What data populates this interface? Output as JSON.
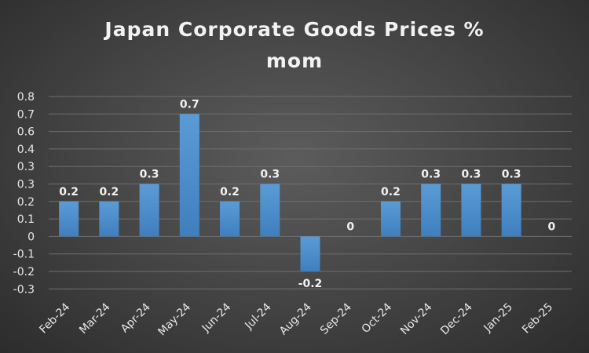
{
  "chart_data": {
    "type": "bar",
    "title_lines": [
      "Japan Corporate Goods Prices %",
      "mom"
    ],
    "categories": [
      "Feb-24",
      "Mar-24",
      "Apr-24",
      "May-24",
      "Jun-24",
      "Jul-24",
      "Aug-24",
      "Sep-24",
      "Oct-24",
      "Nov-24",
      "Dec-24",
      "Jan-25",
      "Feb-25"
    ],
    "values": [
      0.2,
      0.2,
      0.3,
      0.7,
      0.2,
      0.3,
      -0.2,
      0,
      0.2,
      0.3,
      0.3,
      0.3,
      0
    ],
    "data_labels": [
      "0.2",
      "0.2",
      "0.3",
      "0.7",
      "0.2",
      "0.3",
      "-0.2",
      "0",
      "0.2",
      "0.3",
      "0.3",
      "0.3",
      "0"
    ],
    "y_tick_labels": [
      "0.8",
      "0.7",
      "0.6",
      "0.4",
      "0.3",
      "0.3",
      "0.2",
      "0.1",
      "0",
      "-0.1",
      "-0.2",
      "-0.3"
    ],
    "ylim": [
      -0.3,
      0.8
    ],
    "xlabel": "",
    "ylabel": "",
    "grid": true,
    "legend": "none",
    "bar_color": "#5b9bd5",
    "bar_color_dark": "#3f7fbe",
    "gridline_color": "#6e6e6e",
    "text_color": "#f2f2f2"
  }
}
